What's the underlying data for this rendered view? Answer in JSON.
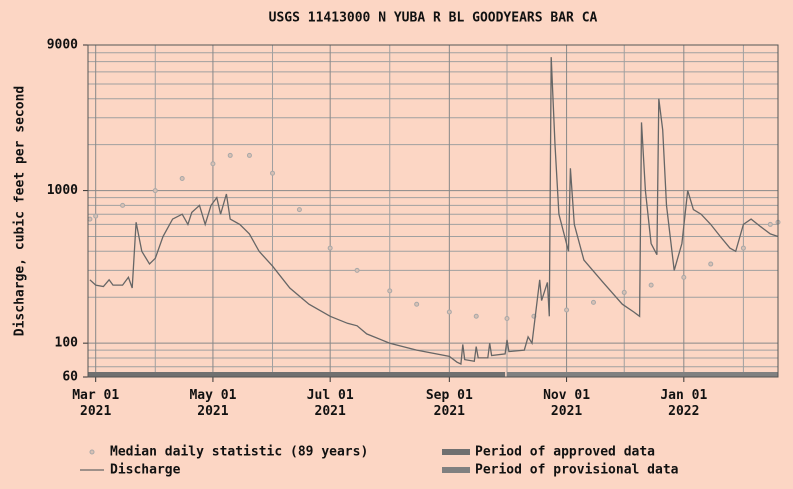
{
  "chart_data": {
    "type": "line",
    "title": "USGS 11413000 N YUBA R BL GOODYEARS BAR CA",
    "ylabel": "Discharge, cubic feet per second",
    "log_scale": true,
    "grid": true,
    "ylim": [
      60,
      9000
    ],
    "yticks": [
      60,
      100,
      1000,
      9000
    ],
    "yminorticks": [
      70,
      80,
      90,
      200,
      300,
      400,
      500,
      600,
      700,
      800,
      900,
      2000,
      3000,
      4000,
      5000,
      6000,
      7000,
      8000
    ],
    "xlim": [
      "2021-02-25",
      "2022-02-19"
    ],
    "xticks": [
      {
        "value": "2021-03-01",
        "label": "Mar 01\n2021"
      },
      {
        "value": "2021-05-01",
        "label": "May 01\n2021"
      },
      {
        "value": "2021-07-01",
        "label": "Jul 01\n2021"
      },
      {
        "value": "2021-09-01",
        "label": "Sep 01\n2021"
      },
      {
        "value": "2021-11-01",
        "label": "Nov 01\n2021"
      },
      {
        "value": "2022-01-01",
        "label": "Jan 01\n2022"
      }
    ],
    "xminorticks": [
      "2021-04-01",
      "2021-06-01",
      "2021-08-01",
      "2021-10-01",
      "2021-12-01",
      "2022-02-01"
    ],
    "series": [
      {
        "name": "Median daily statistic (89 years)",
        "color": "#a8a8a8",
        "style": "dots",
        "x": [
          "2021-02-26",
          "2021-03-01",
          "2021-03-15",
          "2021-04-01",
          "2021-04-15",
          "2021-05-01",
          "2021-05-10",
          "2021-05-20",
          "2021-06-01",
          "2021-06-15",
          "2021-07-01",
          "2021-07-15",
          "2021-08-01",
          "2021-08-15",
          "2021-09-01",
          "2021-09-15",
          "2021-10-01",
          "2021-10-15",
          "2021-11-01",
          "2021-11-15",
          "2021-12-01",
          "2021-12-15",
          "2022-01-01",
          "2022-01-15",
          "2022-02-01",
          "2022-02-15",
          "2022-02-19"
        ],
        "values": [
          650,
          680,
          800,
          1000,
          1200,
          1500,
          1700,
          1700,
          1300,
          750,
          420,
          300,
          220,
          180,
          160,
          150,
          145,
          150,
          165,
          185,
          215,
          240,
          270,
          330,
          420,
          600,
          620
        ]
      },
      {
        "name": "Discharge",
        "color": "#666666",
        "style": "line",
        "x": [
          "2021-02-26",
          "2021-03-01",
          "2021-03-05",
          "2021-03-08",
          "2021-03-10",
          "2021-03-15",
          "2021-03-18",
          "2021-03-20",
          "2021-03-22",
          "2021-03-25",
          "2021-03-29",
          "2021-04-01",
          "2021-04-05",
          "2021-04-10",
          "2021-04-15",
          "2021-04-18",
          "2021-04-20",
          "2021-04-24",
          "2021-04-27",
          "2021-04-30",
          "2021-05-03",
          "2021-05-05",
          "2021-05-08",
          "2021-05-10",
          "2021-05-15",
          "2021-05-20",
          "2021-05-25",
          "2021-06-01",
          "2021-06-10",
          "2021-06-20",
          "2021-07-01",
          "2021-07-10",
          "2021-07-15",
          "2021-07-20",
          "2021-08-01",
          "2021-08-15",
          "2021-09-01",
          "2021-09-05",
          "2021-09-07",
          "2021-09-08",
          "2021-09-09",
          "2021-09-14",
          "2021-09-15",
          "2021-09-16",
          "2021-09-21",
          "2021-09-22",
          "2021-09-23",
          "2021-09-30",
          "2021-10-01",
          "2021-10-02",
          "2021-10-10",
          "2021-10-12",
          "2021-10-14",
          "2021-10-18",
          "2021-10-19",
          "2021-10-22",
          "2021-10-23",
          "2021-10-24",
          "2021-10-26",
          "2021-10-28",
          "2021-10-31",
          "2021-11-02",
          "2021-11-03",
          "2021-11-05",
          "2021-11-10",
          "2021-11-20",
          "2021-11-30",
          "2021-12-06",
          "2021-12-09",
          "2021-12-10",
          "2021-12-12",
          "2021-12-15",
          "2021-12-18",
          "2021-12-19",
          "2021-12-21",
          "2021-12-23",
          "2021-12-27",
          "2021-12-31",
          "2022-01-03",
          "2022-01-06",
          "2022-01-10",
          "2022-01-15",
          "2022-01-20",
          "2022-01-25",
          "2022-01-28",
          "2022-02-01",
          "2022-02-05",
          "2022-02-10",
          "2022-02-15",
          "2022-02-19"
        ],
        "values": [
          260,
          240,
          235,
          260,
          240,
          240,
          270,
          230,
          620,
          400,
          330,
          360,
          500,
          650,
          700,
          600,
          720,
          800,
          600,
          800,
          900,
          700,
          950,
          650,
          600,
          520,
          400,
          320,
          230,
          180,
          150,
          135,
          130,
          115,
          100,
          90,
          82,
          75,
          73,
          98,
          78,
          76,
          95,
          80,
          80,
          100,
          83,
          85,
          105,
          88,
          90,
          110,
          100,
          260,
          190,
          250,
          150,
          7500,
          2000,
          700,
          500,
          400,
          1400,
          600,
          350,
          250,
          180,
          160,
          150,
          2800,
          1000,
          450,
          380,
          4000,
          2500,
          800,
          300,
          450,
          1000,
          750,
          700,
          600,
          500,
          420,
          400,
          600,
          650,
          580,
          520,
          500
        ]
      }
    ],
    "periods": [
      {
        "name": "Period of approved data",
        "color": "#707070",
        "start": "2021-02-25",
        "end": "2021-09-30"
      },
      {
        "name": "Period of provisional data",
        "color": "#808080",
        "start": "2021-10-01",
        "end": "2022-02-19"
      }
    ]
  }
}
